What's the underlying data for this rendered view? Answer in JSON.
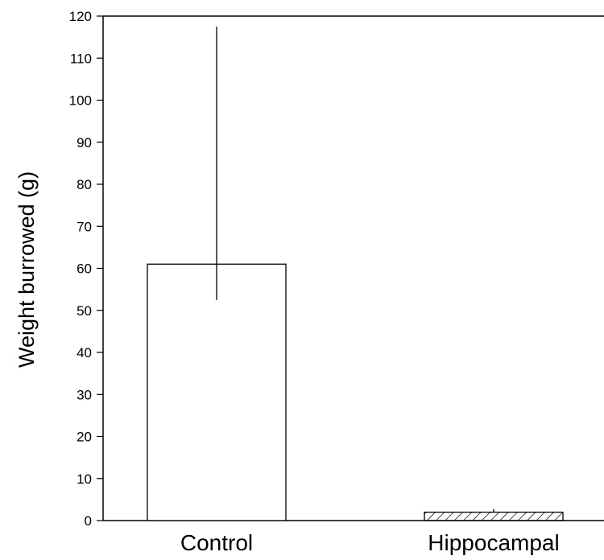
{
  "chart_data": {
    "type": "bar",
    "categories": [
      "Control",
      "Hippocampal"
    ],
    "values": [
      61,
      2
    ],
    "error_upper": [
      117.5,
      2.7
    ],
    "error_lower": [
      52.5,
      2
    ],
    "bar_fill": [
      "none",
      "hatched"
    ],
    "title": "",
    "xlabel": "",
    "ylabel": "Weight burrowed (g)",
    "ylim": [
      0,
      120
    ],
    "yticks": [
      0,
      10,
      20,
      30,
      40,
      50,
      60,
      70,
      80,
      90,
      100,
      110,
      120
    ],
    "grid": false,
    "legend": "none"
  },
  "colors": {
    "axis": "#000000",
    "bar_fill": "#ffffff",
    "hatch": "#000000"
  }
}
